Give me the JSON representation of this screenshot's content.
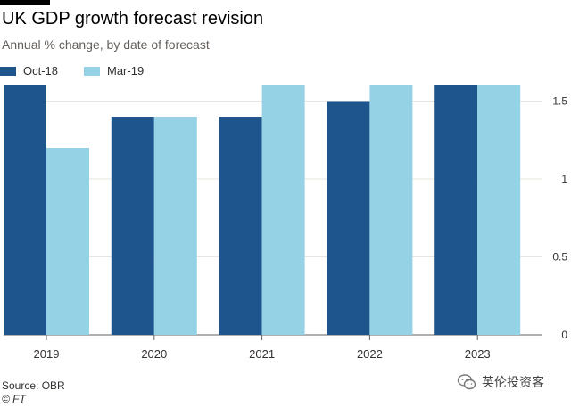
{
  "header": {
    "title": "UK GDP growth forecast revision",
    "subtitle": "Annual % change, by date of forecast"
  },
  "footer": {
    "source": "Source: OBR",
    "credit": "© FT"
  },
  "watermark": {
    "text": "英伦投资客",
    "icon": "wechat-icon"
  },
  "colors": {
    "series_oct18": "#1e558c",
    "series_mar19": "#96d2e6",
    "gridline": "#e9e4df",
    "axis_text": "#33302e"
  },
  "chart_data": {
    "type": "bar",
    "title": "UK GDP growth forecast revision",
    "subtitle": "Annual % change, by date of forecast",
    "categories": [
      "2019",
      "2020",
      "2021",
      "2022",
      "2023"
    ],
    "series": [
      {
        "name": "Oct-18",
        "values": [
          1.6,
          1.4,
          1.4,
          1.5,
          1.6
        ]
      },
      {
        "name": "Mar-19",
        "values": [
          1.2,
          1.4,
          1.6,
          1.6,
          1.6
        ]
      }
    ],
    "ylim": [
      0,
      1.6
    ],
    "yticks": [
      0,
      0.5,
      1,
      1.5
    ],
    "ytick_labels": [
      "0",
      "0.5",
      "1",
      "1.5"
    ],
    "y_axis_side": "right",
    "grid": true,
    "legend_position": "top-left",
    "xlabel": "",
    "ylabel": ""
  }
}
